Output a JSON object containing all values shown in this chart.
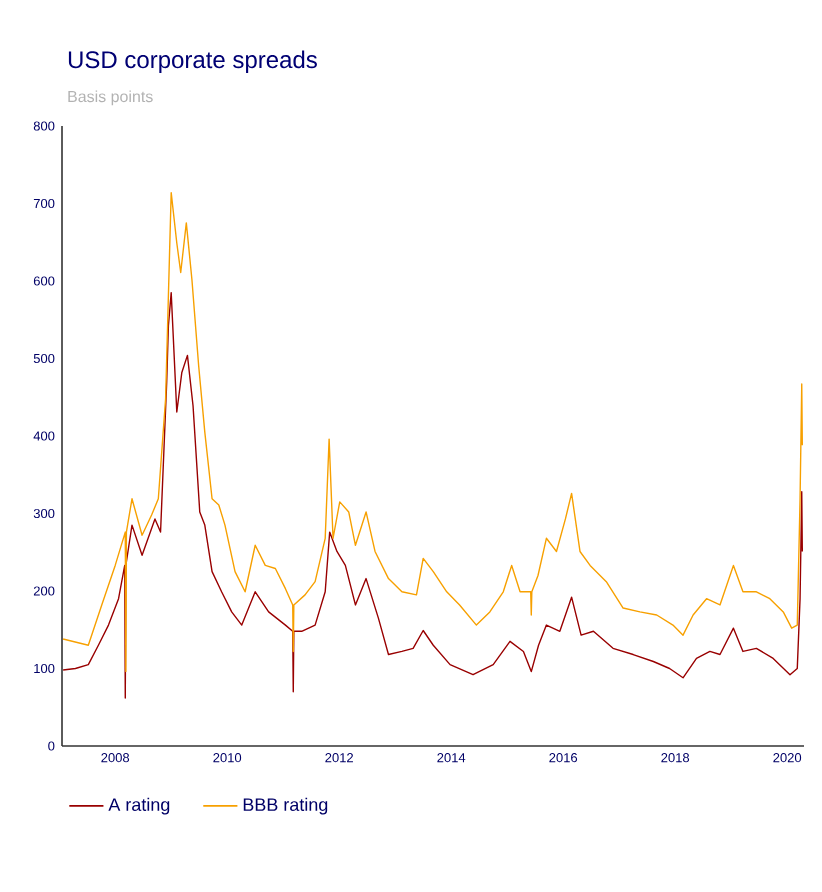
{
  "chart_data": {
    "type": "line",
    "title": "USD corporate spreads",
    "ylabel": "Basis points",
    "xlim": [
      2007.05,
      2020.3
    ],
    "ylim": [
      0,
      800
    ],
    "xticks": [
      2008,
      2010,
      2012,
      2014,
      2016,
      2018,
      2020
    ],
    "yticks": [
      0,
      100,
      200,
      300,
      400,
      500,
      600,
      700,
      800
    ],
    "legend": "bottom left",
    "series": [
      {
        "name": "A rating",
        "color": "#990000",
        "x": [
          2007.07,
          2007.29,
          2007.52,
          2007.7,
          2007.88,
          2008.06,
          2008.17,
          2008.18,
          2008.19,
          2008.3,
          2008.48,
          2008.71,
          2008.81,
          2008.92,
          2008.95,
          2009.0,
          2009.1,
          2009.19,
          2009.29,
          2009.39,
          2009.51,
          2009.6,
          2009.73,
          2009.9,
          2010.08,
          2010.26,
          2010.5,
          2010.74,
          2011.04,
          2011.17,
          2011.18,
          2011.19,
          2011.33,
          2011.57,
          2011.75,
          2011.83,
          2011.96,
          2012.11,
          2012.29,
          2012.48,
          2012.7,
          2012.88,
          2013.12,
          2013.32,
          2013.5,
          2013.68,
          2013.98,
          2014.39,
          2014.75,
          2015.05,
          2015.29,
          2015.43,
          2015.56,
          2015.7,
          2015.94,
          2016.15,
          2016.32,
          2016.54,
          2016.89,
          2017.25,
          2017.61,
          2017.9,
          2018.14,
          2018.38,
          2018.62,
          2018.8,
          2019.04,
          2019.21,
          2019.45,
          2019.75,
          2020.05,
          2020.18,
          2020.23,
          2020.26,
          2020.27
        ],
        "values": [
          98,
          100,
          105,
          130,
          156,
          190,
          233,
          62,
          233,
          285,
          246,
          293,
          276,
          470,
          542,
          585,
          431,
          482,
          504,
          439,
          302,
          285,
          225,
          199,
          173,
          156,
          199,
          173,
          156,
          148,
          70,
          148,
          148,
          156,
          199,
          276,
          251,
          233,
          182,
          216,
          165,
          118,
          122,
          126,
          149,
          130,
          105,
          92,
          105,
          135,
          122,
          96,
          130,
          156,
          148,
          192,
          143,
          148,
          126,
          118,
          109,
          100,
          88,
          113,
          122,
          118,
          152,
          122,
          126,
          113,
          92,
          100,
          190,
          328,
          251
        ]
      },
      {
        "name": "BBB rating",
        "color": "#f7a000",
        "x": [
          2007.07,
          2007.52,
          2007.76,
          2008.0,
          2008.18,
          2008.19,
          2008.2,
          2008.3,
          2008.48,
          2008.65,
          2008.77,
          2008.9,
          2009.0,
          2009.1,
          2009.17,
          2009.27,
          2009.37,
          2009.49,
          2009.6,
          2009.73,
          2009.85,
          2009.96,
          2010.14,
          2010.32,
          2010.5,
          2010.68,
          2010.86,
          2011.04,
          2011.17,
          2011.18,
          2011.19,
          2011.39,
          2011.57,
          2011.75,
          2011.82,
          2011.89,
          2012.01,
          2012.17,
          2012.29,
          2012.48,
          2012.64,
          2012.88,
          2013.12,
          2013.38,
          2013.5,
          2013.68,
          2013.92,
          2014.15,
          2014.45,
          2014.69,
          2014.93,
          2015.08,
          2015.23,
          2015.42,
          2015.43,
          2015.44,
          2015.55,
          2015.7,
          2015.88,
          2016.04,
          2016.15,
          2016.3,
          2016.48,
          2016.77,
          2017.07,
          2017.37,
          2017.67,
          2017.96,
          2018.14,
          2018.32,
          2018.56,
          2018.8,
          2019.04,
          2019.21,
          2019.45,
          2019.69,
          2019.93,
          2020.08,
          2020.18,
          2020.23,
          2020.26,
          2020.27
        ],
        "values": [
          138,
          130,
          182,
          233,
          276,
          96,
          276,
          319,
          272,
          298,
          319,
          448,
          714,
          649,
          611,
          675,
          602,
          491,
          405,
          319,
          311,
          285,
          225,
          199,
          259,
          233,
          229,
          203,
          182,
          122,
          182,
          195,
          212,
          268,
          396,
          268,
          315,
          302,
          259,
          302,
          251,
          216,
          199,
          195,
          242,
          225,
          199,
          182,
          156,
          173,
          199,
          233,
          199,
          199,
          169,
          199,
          220,
          268,
          251,
          293,
          326,
          251,
          233,
          212,
          178,
          173,
          169,
          156,
          143,
          169,
          190,
          182,
          233,
          199,
          199,
          190,
          173,
          152,
          156,
          319,
          467,
          388
        ]
      }
    ]
  }
}
